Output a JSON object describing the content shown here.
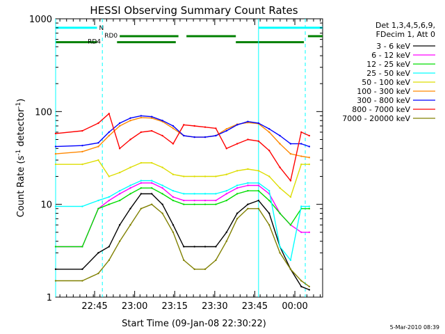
{
  "chart_data": {
    "type": "line",
    "title": "HESSI Observing Summary Count Rates",
    "xlabel": "Start Time (09-Jan-08 22:30:22)",
    "ylabel": "Count Rate (s⁻¹ detector⁻¹)",
    "ylabel_parts": {
      "pre": "Count Rate (s",
      "sup1": "-1",
      "mid": " detector",
      "sup2": "-1",
      "post": ")"
    },
    "x_unit": "minutes since 22:30:22",
    "xlim": [
      0,
      100
    ],
    "ylim": [
      1,
      1000
    ],
    "log_y": true,
    "grid": false,
    "x_ticks": [
      {
        "label": "22:45",
        "value": 14.6
      },
      {
        "label": "23:00",
        "value": 29.6
      },
      {
        "label": "23:15",
        "value": 44.6
      },
      {
        "label": "23:30",
        "value": 59.6
      },
      {
        "label": "23:45",
        "value": 74.6
      },
      {
        "label": "00:00",
        "value": 89.6
      }
    ],
    "y_ticks": [
      {
        "label": "1",
        "value": 1
      },
      {
        "label": "10",
        "value": 10
      },
      {
        "label": "100",
        "value": 100
      },
      {
        "label": "1000",
        "value": 1000
      }
    ],
    "legend_header": [
      "Det 1,3,4,5,6,9,",
      "FDecim 1, Att 0"
    ],
    "legend_position": "right",
    "series": [
      {
        "name": "3 - 6 keV",
        "color": "#000000",
        "x": [
          0,
          10,
          16,
          20,
          24,
          28,
          32,
          36,
          40,
          44,
          48,
          52,
          56,
          60,
          64,
          68,
          72,
          76,
          80,
          84,
          88,
          92,
          95
        ],
        "values": [
          2,
          2,
          3,
          3.5,
          6,
          9,
          13,
          13,
          10,
          6,
          3.5,
          3.5,
          3.5,
          3.5,
          5,
          8,
          10,
          11,
          8,
          3.5,
          2,
          1.3,
          1.2
        ]
      },
      {
        "name": "6 - 12 keV",
        "color": "#ff00ff",
        "x": [
          0,
          10,
          16,
          20,
          24,
          28,
          32,
          36,
          40,
          44,
          48,
          52,
          56,
          60,
          64,
          68,
          72,
          76,
          80,
          84,
          88,
          92,
          95
        ],
        "values": [
          3.5,
          3.5,
          9,
          11,
          13,
          15,
          17,
          17,
          15,
          12,
          11,
          11,
          11,
          11,
          13,
          15,
          16,
          16,
          13,
          8,
          6,
          5,
          5
        ]
      },
      {
        "name": "12 - 25 keV",
        "color": "#00dd00",
        "x": [
          0,
          10,
          16,
          20,
          24,
          28,
          32,
          36,
          40,
          44,
          48,
          52,
          56,
          60,
          64,
          68,
          72,
          76,
          80,
          84,
          88,
          92,
          95
        ],
        "values": [
          3.5,
          3.5,
          9,
          10,
          11,
          13,
          15,
          15,
          13,
          11,
          10,
          10,
          10,
          10,
          11,
          13,
          14,
          14,
          11,
          8,
          6,
          9,
          9
        ]
      },
      {
        "name": "25 - 50 keV",
        "color": "#00ffff",
        "x": [
          0,
          10,
          16,
          20,
          24,
          28,
          32,
          36,
          40,
          44,
          48,
          52,
          56,
          60,
          64,
          68,
          72,
          76,
          80,
          84,
          88,
          92,
          95
        ],
        "values": [
          9.5,
          9.5,
          11,
          12,
          14,
          16,
          18,
          18,
          16,
          14,
          13,
          13,
          13,
          13,
          14,
          16,
          17,
          17,
          14,
          3.5,
          2.5,
          9.5,
          9.5
        ]
      },
      {
        "name": "50 - 100 keV",
        "color": "#dddd00",
        "x": [
          0,
          10,
          16,
          20,
          24,
          28,
          32,
          36,
          40,
          44,
          48,
          52,
          56,
          60,
          64,
          68,
          72,
          76,
          80,
          84,
          88,
          92,
          95
        ],
        "values": [
          27,
          27,
          30,
          20,
          22,
          25,
          28,
          28,
          25,
          21,
          20,
          20,
          20,
          20,
          21,
          23,
          24,
          23,
          20,
          15,
          12,
          27,
          27
        ]
      },
      {
        "name": "100 - 300 keV",
        "color": "#ff8800",
        "x": [
          0,
          10,
          16,
          20,
          24,
          28,
          32,
          36,
          40,
          44,
          48,
          52,
          56,
          60,
          64,
          68,
          72,
          76,
          80,
          84,
          88,
          92,
          95
        ],
        "values": [
          35,
          37,
          42,
          55,
          70,
          80,
          86,
          85,
          78,
          66,
          55,
          53,
          53,
          55,
          65,
          73,
          76,
          74,
          60,
          45,
          35,
          33,
          32
        ]
      },
      {
        "name": "300 - 800 keV",
        "color": "#0000ff",
        "x": [
          0,
          10,
          16,
          20,
          24,
          28,
          32,
          36,
          40,
          44,
          48,
          52,
          56,
          60,
          64,
          68,
          72,
          76,
          80,
          84,
          88,
          92,
          95
        ],
        "values": [
          42,
          43,
          46,
          60,
          75,
          85,
          90,
          88,
          80,
          70,
          55,
          53,
          53,
          55,
          62,
          72,
          78,
          75,
          65,
          55,
          45,
          45,
          42
        ]
      },
      {
        "name": "800 - 7000 keV",
        "color": "#ff0000",
        "x": [
          0,
          10,
          16,
          20,
          24,
          28,
          32,
          36,
          40,
          44,
          48,
          52,
          56,
          60,
          64,
          68,
          72,
          76,
          80,
          84,
          88,
          92,
          95
        ],
        "values": [
          58,
          62,
          75,
          95,
          40,
          50,
          60,
          62,
          55,
          45,
          72,
          70,
          68,
          66,
          40,
          45,
          50,
          48,
          38,
          25,
          18,
          60,
          55
        ]
      },
      {
        "name": "7000 - 20000 keV",
        "color": "#808000",
        "x": [
          0,
          10,
          16,
          20,
          24,
          28,
          32,
          36,
          40,
          44,
          48,
          52,
          56,
          60,
          64,
          68,
          72,
          76,
          80,
          84,
          88,
          92,
          95
        ],
        "values": [
          1.5,
          1.5,
          1.8,
          2.5,
          4,
          6,
          9,
          10,
          8,
          5,
          2.5,
          2,
          2,
          2.5,
          4,
          7,
          9,
          9,
          6,
          3,
          2,
          1.5,
          1.3
        ]
      }
    ],
    "bars": [
      {
        "label": "N",
        "color": "#00ffff",
        "y": 800,
        "segments": [
          [
            0,
            15.5
          ],
          [
            76,
            100
          ]
        ]
      },
      {
        "label": "RD0",
        "color": "#008000",
        "y": 650,
        "segments": [
          [
            24,
            46
          ],
          [
            49,
            67.5
          ],
          [
            94.5,
            100
          ]
        ]
      },
      {
        "label": "RD4",
        "color": "#008000",
        "y": 560,
        "segments": [
          [
            0,
            15.5
          ],
          [
            23,
            45
          ],
          [
            67.5,
            93
          ]
        ]
      }
    ],
    "vlines": [
      {
        "x": 0,
        "color": "#00ffff",
        "style": "solid"
      },
      {
        "x": 17.5,
        "color": "#00ffff",
        "style": "dashed"
      },
      {
        "x": 76,
        "color": "#00ffff",
        "style": "solid"
      },
      {
        "x": 93.5,
        "color": "#00ffff",
        "style": "dashed"
      }
    ]
  },
  "footer": {
    "timestamp": "5-Mar-2010 08:39"
  }
}
